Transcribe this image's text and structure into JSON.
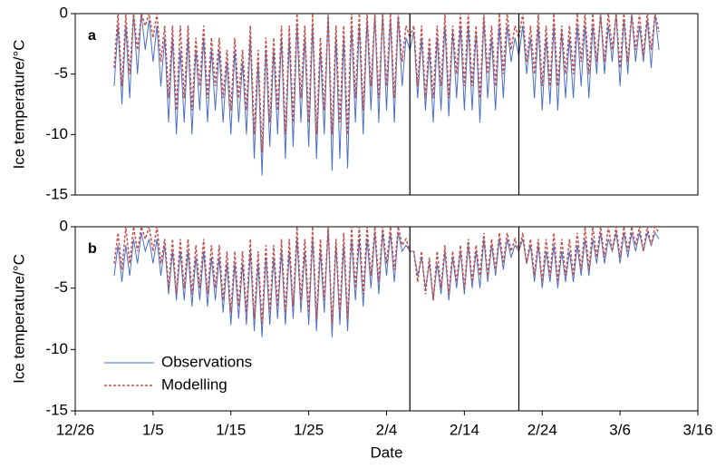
{
  "chart_data": [
    {
      "type": "line",
      "panel_label": "a",
      "ylabel": "Ice temperature/°C",
      "xlim": [
        0,
        80
      ],
      "ylim": [
        -15,
        0
      ],
      "yticks": [
        -15,
        -10,
        -5,
        0
      ],
      "vlines": [
        43,
        57
      ],
      "x": [
        5,
        5.5,
        6,
        6.5,
        7,
        7.5,
        8,
        8.5,
        9,
        9.5,
        10,
        10.5,
        11,
        11.5,
        12,
        12.5,
        13,
        13.5,
        14,
        14.5,
        15,
        15.5,
        16,
        16.5,
        17,
        17.5,
        18,
        18.5,
        19,
        19.5,
        20,
        20.5,
        21,
        21.5,
        22,
        22.5,
        23,
        23.5,
        24,
        24.5,
        25,
        25.5,
        26,
        26.5,
        27,
        27.5,
        28,
        28.5,
        29,
        29.5,
        30,
        30.5,
        31,
        31.5,
        32,
        32.5,
        33,
        33.5,
        34,
        34.5,
        35,
        35.5,
        36,
        36.5,
        37,
        37.5,
        38,
        38.5,
        39,
        39.5,
        40,
        40.5,
        41,
        41.5,
        42,
        42.5,
        43,
        43.5,
        44,
        44.5,
        45,
        45.5,
        46,
        46.5,
        47,
        47.5,
        48,
        48.5,
        49,
        49.5,
        50,
        50.5,
        51,
        51.5,
        52,
        52.5,
        53,
        53.5,
        54,
        54.5,
        55,
        55.5,
        56,
        56.5,
        57,
        57.5,
        58,
        58.5,
        59,
        59.5,
        60,
        60.5,
        61,
        61.5,
        62,
        62.5,
        63,
        63.5,
        64,
        64.5,
        65,
        65.5,
        66,
        66.5,
        67,
        67.5,
        68,
        68.5,
        69,
        69.5,
        70,
        70.5,
        71,
        71.5,
        72,
        72.5,
        73,
        73.5,
        74,
        74.5,
        75
      ],
      "series": [
        {
          "color": "#4a6fc4",
          "dash": "none",
          "values": [
            -6,
            -1,
            -7.5,
            -1,
            -7,
            0,
            -5,
            0,
            -3,
            -0.5,
            -4,
            -1,
            -6,
            -2,
            -9,
            -2,
            -10,
            -3,
            -9,
            -2,
            -10,
            -3,
            -8,
            -2,
            -9,
            -3,
            -8,
            -3,
            -9,
            -4,
            -10,
            -3,
            -9,
            -4,
            -10,
            -2,
            -12,
            -4,
            -13.4,
            -3,
            -11,
            -3,
            -10,
            -2,
            -12,
            -2,
            -11,
            -1,
            -9,
            -2,
            -11,
            -1,
            -12,
            -3,
            -10,
            0,
            -13,
            -2,
            -12,
            -2,
            -12.8,
            -1,
            -9,
            -1,
            -10,
            -0.5,
            -8,
            0,
            -9,
            0,
            -8,
            -0.5,
            -9,
            -0.2,
            -6,
            -2,
            -3,
            -1.5,
            -7,
            -2,
            -8,
            -3,
            -9,
            -2,
            -8,
            -1,
            -8.5,
            -1.5,
            -7,
            -1,
            -8,
            -1,
            -8,
            -1.5,
            -9,
            -0.5,
            -7,
            -2,
            -8,
            -1,
            -7,
            -1,
            -4,
            -2,
            -3.5,
            -1,
            -5,
            -2,
            -7,
            -1,
            -8,
            -2,
            -7.5,
            -1,
            -8,
            -1.5,
            -7,
            -2,
            -7,
            -1,
            -6,
            -1,
            -7,
            -1,
            -5,
            0,
            -5,
            -1,
            -4,
            0,
            -6,
            -0.5,
            -5,
            0,
            -4,
            -1,
            -4,
            -0.5,
            -4.5,
            0,
            -3
          ]
        },
        {
          "color": "#c0504d",
          "dash": "3,2",
          "values": [
            -4.5,
            0,
            -6,
            0,
            -5,
            0,
            -3,
            0,
            -1,
            0,
            -2,
            0,
            -4,
            -1,
            -7,
            -1,
            -8,
            -1,
            -7,
            -1,
            -8,
            -2,
            -6,
            -1,
            -7,
            -2,
            -6,
            -2,
            -7,
            -3,
            -8,
            -2,
            -7,
            -3,
            -8,
            -1,
            -10,
            -3,
            -11.5,
            -2,
            -9,
            -2,
            -8,
            -1,
            -10,
            -1,
            -9,
            0,
            -7,
            -1,
            -9,
            0,
            -10,
            -2,
            -8,
            0,
            -10,
            -1,
            -9,
            -1,
            -10,
            0,
            -7,
            0,
            -8,
            0,
            -6,
            0,
            -7,
            0,
            -6,
            0,
            -7,
            0,
            -4,
            -1,
            -2,
            -1,
            -6,
            -1,
            -7,
            -2,
            -7,
            -1,
            -6,
            0,
            -7,
            -1,
            -5,
            0,
            -6,
            0,
            -6,
            -1,
            -7,
            0,
            -5,
            -1,
            -6,
            0,
            -5,
            0,
            -3,
            -1,
            -2,
            0,
            -4,
            -1,
            -5,
            0,
            -6,
            -1,
            -6,
            0,
            -6,
            -1,
            -5,
            -1,
            -5,
            0,
            -4,
            0,
            -5,
            0,
            -4,
            0,
            -4,
            0,
            -3,
            0,
            -4.5,
            0,
            -4,
            0,
            -3,
            0,
            -3.5,
            0,
            -3,
            0,
            -1.5
          ]
        }
      ]
    },
    {
      "type": "line",
      "panel_label": "b",
      "ylabel": "Ice temperature/°C",
      "xlabel": "Date",
      "xlim": [
        0,
        80
      ],
      "xticks": [
        {
          "value": 0,
          "label": "12/26"
        },
        {
          "value": 10,
          "label": "1/5"
        },
        {
          "value": 20,
          "label": "1/15"
        },
        {
          "value": 30,
          "label": "1/25"
        },
        {
          "value": 40,
          "label": "2/4"
        },
        {
          "value": 50,
          "label": "2/14"
        },
        {
          "value": 60,
          "label": "2/24"
        },
        {
          "value": 70,
          "label": "3/6"
        },
        {
          "value": 80,
          "label": "3/16"
        }
      ],
      "ylim": [
        -15,
        0
      ],
      "yticks": [
        -15,
        -10,
        -5,
        0
      ],
      "vlines": [
        43,
        57
      ],
      "x": [
        5,
        5.5,
        6,
        6.5,
        7,
        7.5,
        8,
        8.5,
        9,
        9.5,
        10,
        10.5,
        11,
        11.5,
        12,
        12.5,
        13,
        13.5,
        14,
        14.5,
        15,
        15.5,
        16,
        16.5,
        17,
        17.5,
        18,
        18.5,
        19,
        19.5,
        20,
        20.5,
        21,
        21.5,
        22,
        22.5,
        23,
        23.5,
        24,
        24.5,
        25,
        25.5,
        26,
        26.5,
        27,
        27.5,
        28,
        28.5,
        29,
        29.5,
        30,
        30.5,
        31,
        31.5,
        32,
        32.5,
        33,
        33.5,
        34,
        34.5,
        35,
        35.5,
        36,
        36.5,
        37,
        37.5,
        38,
        38.5,
        39,
        39.5,
        40,
        40.5,
        41,
        41.5,
        42,
        42.5,
        43,
        43.5,
        44,
        44.5,
        45,
        45.5,
        46,
        46.5,
        47,
        47.5,
        48,
        48.5,
        49,
        49.5,
        50,
        50.5,
        51,
        51.5,
        52,
        52.5,
        53,
        53.5,
        54,
        54.5,
        55,
        55.5,
        56,
        56.5,
        57,
        57.5,
        58,
        58.5,
        59,
        59.5,
        60,
        60.5,
        61,
        61.5,
        62,
        62.5,
        63,
        63.5,
        64,
        64.5,
        65,
        65.5,
        66,
        66.5,
        67,
        67.5,
        68,
        68.5,
        69,
        69.5,
        70,
        70.5,
        71,
        71.5,
        72,
        72.5,
        73,
        73.5,
        74,
        74.5,
        75
      ],
      "series": [
        {
          "name": "Observations",
          "color": "#4a6fc4",
          "dash": "none",
          "values": [
            -4,
            -1.5,
            -4.5,
            -1.5,
            -4,
            -1,
            -3,
            -0.5,
            -2,
            -1,
            -3,
            -1,
            -4,
            -1.5,
            -5.5,
            -2,
            -6,
            -2,
            -6,
            -2,
            -6.5,
            -2.5,
            -6,
            -2,
            -6.5,
            -2.5,
            -6,
            -2.5,
            -7,
            -3,
            -8,
            -3,
            -7.5,
            -3,
            -8,
            -2,
            -8.5,
            -3,
            -9,
            -2.5,
            -8,
            -2.5,
            -7.5,
            -2,
            -8,
            -2,
            -7.5,
            -1,
            -7,
            -2,
            -8,
            -1,
            -8.5,
            -2,
            -7,
            0,
            -9,
            -1.5,
            -8,
            -1.5,
            -8.5,
            -1,
            -6,
            -1,
            -6.5,
            -1,
            -5,
            -0.5,
            -5.5,
            -0.5,
            -4,
            -0.5,
            -4.5,
            -0.5,
            -2,
            -1.5,
            -2,
            -2,
            -4,
            -2.5,
            -5,
            -3,
            -6,
            -3,
            -5.5,
            -2,
            -6,
            -2.5,
            -5,
            -2,
            -5.5,
            -1.5,
            -5,
            -2,
            -5,
            -1,
            -4.5,
            -1.5,
            -4,
            -1,
            -3.5,
            -1,
            -2.5,
            -1.5,
            -2,
            -1,
            -3,
            -1.5,
            -4.5,
            -1.5,
            -5,
            -2,
            -4.5,
            -1.5,
            -5,
            -2,
            -4.5,
            -2,
            -4.5,
            -1.5,
            -4,
            -1,
            -4,
            -1,
            -3,
            -0.5,
            -3,
            -1,
            -2,
            -0.5,
            -3,
            -0.5,
            -2.5,
            -0.5,
            -2,
            -0.5,
            -2,
            -0.5,
            -1.5,
            -0.5,
            -1
          ]
        },
        {
          "name": "Modelling",
          "color": "#c0504d",
          "dash": "3,2",
          "values": [
            -3,
            -0.5,
            -3.5,
            0,
            -3,
            0,
            -2,
            0,
            -1,
            0,
            -2,
            0,
            -3,
            -1,
            -5,
            -1,
            -5.5,
            -1,
            -5,
            -1,
            -5.5,
            -1.5,
            -5,
            -1,
            -5.5,
            -1.5,
            -5,
            -1.5,
            -6,
            -2,
            -7,
            -2,
            -6.5,
            -2,
            -7,
            -1,
            -7.5,
            -2,
            -8,
            -1.5,
            -7,
            -1.5,
            -6.5,
            -1,
            -7,
            -1,
            -6.5,
            0,
            -6,
            -1,
            -7,
            0,
            -7.5,
            -1,
            -6,
            0,
            -8,
            -1,
            -7,
            -0.5,
            -7.5,
            0,
            -5,
            0,
            -5.5,
            0,
            -4,
            0,
            -4.5,
            0,
            -3,
            0,
            -3.5,
            0,
            -1.5,
            -1,
            -2,
            -2,
            -4.5,
            -2,
            -5.5,
            -2.5,
            -6,
            -2,
            -5,
            -1.5,
            -5.5,
            -2,
            -4.5,
            -1.5,
            -5,
            -1,
            -4.5,
            -1.5,
            -4,
            -0.5,
            -4,
            -1,
            -3.5,
            -0.5,
            -3,
            -0.5,
            -2,
            -1,
            -2,
            -0.5,
            -3,
            -1,
            -4,
            -1,
            -4.5,
            -1,
            -4,
            -0.5,
            -4.5,
            -1,
            -4,
            -1,
            -4,
            -0.5,
            -3.5,
            0,
            -3.5,
            0,
            -2.5,
            0,
            -2.5,
            0,
            -2,
            0,
            -2.5,
            0,
            -2,
            0,
            -1.5,
            0,
            -2,
            0,
            -1.5,
            0,
            -0.5
          ]
        }
      ]
    }
  ]
}
